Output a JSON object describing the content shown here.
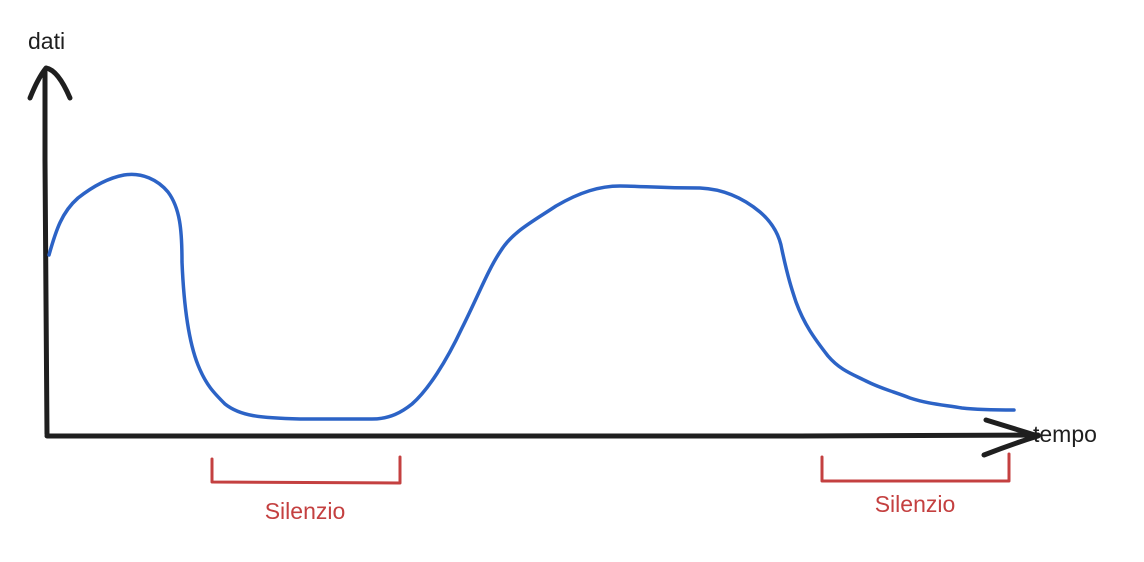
{
  "diagram": {
    "y_axis": {
      "label": "dati"
    },
    "x_axis": {
      "label": "tempo"
    },
    "signal": {
      "name": "",
      "color": "#2c63c6"
    },
    "silence_intervals": [
      {
        "label": "Silenzio"
      },
      {
        "label": "Silenzio"
      }
    ],
    "colors": {
      "axis": "#1f1f1f",
      "signal": "#2c63c6",
      "silence": "#c44040"
    }
  }
}
